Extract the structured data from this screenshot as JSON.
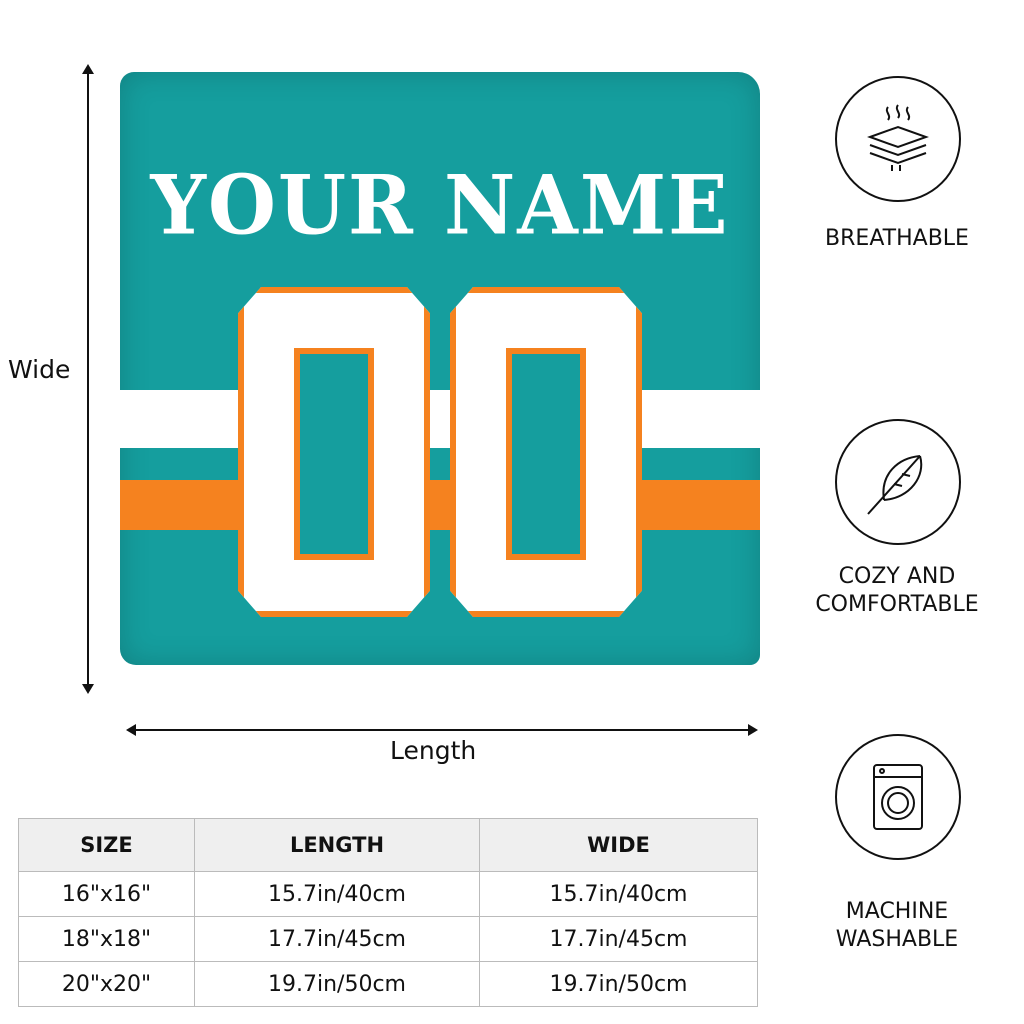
{
  "pillow": {
    "name_text": "YOUR NAME",
    "number_text": "00",
    "colors": {
      "teal": "#159e9e",
      "orange": "#f5821f",
      "white": "#ffffff"
    }
  },
  "dimensions": {
    "vertical_label": "Wide",
    "horizontal_label": "Length"
  },
  "features": [
    {
      "icon": "breathable-layers-icon",
      "label": "BREATHABLE"
    },
    {
      "icon": "feather-icon",
      "label": "COZY AND COMFORTABLE"
    },
    {
      "icon": "washing-machine-icon",
      "label": "MACHINE WASHABLE"
    }
  ],
  "size_table": {
    "headers": [
      "SIZE",
      "LENGTH",
      "WIDE"
    ],
    "rows": [
      [
        "16\"x16\"",
        "15.7in/40cm",
        "15.7in/40cm"
      ],
      [
        "18\"x18\"",
        "17.7in/45cm",
        "17.7in/45cm"
      ],
      [
        "20\"x20\"",
        "19.7in/50cm",
        "19.7in/50cm"
      ]
    ]
  }
}
